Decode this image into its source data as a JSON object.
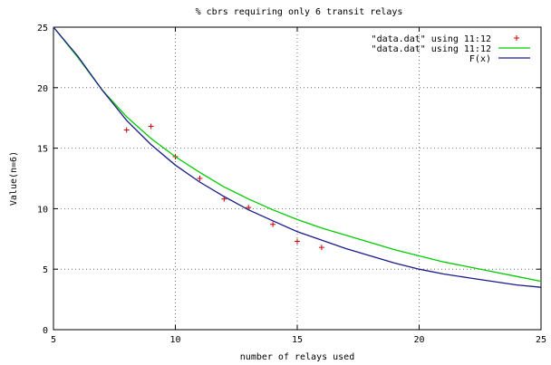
{
  "chart_data": {
    "type": "scatter",
    "title": "% cbrs requiring only 6 transit relays",
    "xlabel": "number of relays used",
    "ylabel": "Value(n=6)",
    "xlim": [
      5,
      25
    ],
    "ylim": [
      0,
      25
    ],
    "x_ticks": [
      "5",
      "10",
      "15",
      "20",
      "25"
    ],
    "y_ticks": [
      "0",
      "5",
      "10",
      "15",
      "20",
      "25"
    ],
    "grid": true,
    "legend_position": "top-right",
    "series": [
      {
        "name": "\"data.dat\" using 11:12",
        "kind": "points",
        "color": "#cc0000",
        "x": [
          8,
          9,
          10,
          11,
          12,
          13,
          14,
          15,
          16
        ],
        "y": [
          16.5,
          16.8,
          14.3,
          12.5,
          10.8,
          10.1,
          8.7,
          7.3,
          6.8
        ]
      },
      {
        "name": "\"data.dat\" using 11:12",
        "kind": "line",
        "color": "#00cc00",
        "x": [
          5,
          6,
          7,
          8,
          9,
          10,
          11,
          12,
          13,
          14,
          15,
          16,
          17,
          18,
          19,
          20,
          21,
          22,
          23,
          24,
          25
        ],
        "y": [
          25.4,
          22.5,
          19.8,
          17.6,
          15.8,
          14.3,
          13.0,
          11.8,
          10.8,
          9.9,
          9.1,
          8.4,
          7.8,
          7.2,
          6.6,
          6.1,
          5.6,
          5.2,
          4.8,
          4.4,
          4.0
        ]
      },
      {
        "name": "F(x)",
        "kind": "line",
        "color": "#1a1a8c",
        "x": [
          5,
          6,
          7,
          8,
          9,
          10,
          11,
          12,
          13,
          14,
          15,
          16,
          17,
          18,
          19,
          20,
          21,
          22,
          23,
          24,
          25
        ],
        "y": [
          25.6,
          22.6,
          19.8,
          17.3,
          15.3,
          13.6,
          12.2,
          11.0,
          9.9,
          9.0,
          8.1,
          7.4,
          6.7,
          6.1,
          5.5,
          5.0,
          4.6,
          4.3,
          4.0,
          3.7,
          3.5
        ]
      }
    ]
  }
}
